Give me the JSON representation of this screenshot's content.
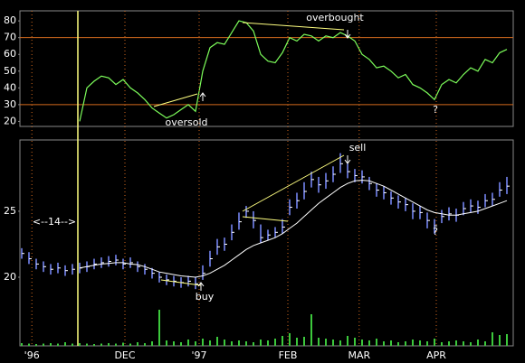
{
  "chart_data": [
    {
      "type": "line",
      "color": "#7CFC5A",
      "values": [
        null,
        null,
        null,
        null,
        null,
        null,
        null,
        null,
        20,
        40,
        44,
        47,
        46,
        42,
        45,
        40,
        37,
        33,
        28,
        25,
        22,
        24,
        27,
        30,
        26,
        50,
        64,
        67,
        66,
        73,
        80,
        79,
        74,
        60,
        56,
        55,
        61,
        70,
        68,
        72,
        71,
        68,
        71,
        70,
        73,
        71,
        68,
        60,
        57,
        52,
        53,
        50,
        46,
        48,
        42,
        40,
        37,
        33,
        42,
        45,
        43,
        48,
        52,
        50,
        57,
        55,
        61,
        63
      ],
      "xlim": [
        -0.25,
        67.875
      ],
      "ylim": [
        17,
        86
      ],
      "yticks": [
        20,
        30,
        40,
        50,
        60,
        70,
        80
      ],
      "levels": [
        70,
        30
      ],
      "level_color": "#D2691E",
      "annotations": [
        "overbought",
        "oversold",
        "?"
      ]
    },
    {
      "type": "ohlc",
      "bar_color": "#7B8CFF",
      "close_color": "#ffffff",
      "ma_color": "#ffffff",
      "volume_color": "#3CC83C",
      "high": [
        22.2,
        21.9,
        21.4,
        21.2,
        21.0,
        21.1,
        20.9,
        21.0,
        21.1,
        21.2,
        21.4,
        21.5,
        21.6,
        21.7,
        21.4,
        21.5,
        21.2,
        21.0,
        20.7,
        20.4,
        20.2,
        20.1,
        20.0,
        20.1,
        20.0,
        20.9,
        22.0,
        22.9,
        23.0,
        24.0,
        24.9,
        25.4,
        25.0,
        24.0,
        23.6,
        23.8,
        24.4,
        25.9,
        26.4,
        27.2,
        28.0,
        27.6,
        27.9,
        28.4,
        29.4,
        28.6,
        28.2,
        28.1,
        27.6,
        27.1,
        26.9,
        26.5,
        26.2,
        26.0,
        25.6,
        25.4,
        24.9,
        24.4,
        25.1,
        25.3,
        25.2,
        25.7,
        25.9,
        25.8,
        26.3,
        26.4,
        27.2,
        27.6
      ],
      "low": [
        21.4,
        21.0,
        20.6,
        20.4,
        20.2,
        20.3,
        20.1,
        20.2,
        20.3,
        20.4,
        20.6,
        20.7,
        20.8,
        20.9,
        20.6,
        20.7,
        20.4,
        20.2,
        19.9,
        19.6,
        19.4,
        19.3,
        19.2,
        19.3,
        19.1,
        19.8,
        20.8,
        21.7,
        22.0,
        22.8,
        23.6,
        24.5,
        23.7,
        22.6,
        22.8,
        23.0,
        23.3,
        24.7,
        25.2,
        25.9,
        26.8,
        26.4,
        26.7,
        27.2,
        27.9,
        27.5,
        27.2,
        27.1,
        26.6,
        26.1,
        25.9,
        25.5,
        25.2,
        25.0,
        24.4,
        24.4,
        23.7,
        23.3,
        24.1,
        24.3,
        24.2,
        24.7,
        24.9,
        24.8,
        25.3,
        25.4,
        26.1,
        26.3
      ],
      "close": [
        21.8,
        21.4,
        21.0,
        20.8,
        20.6,
        20.7,
        20.5,
        20.6,
        20.7,
        20.8,
        21.0,
        21.1,
        21.2,
        21.3,
        21.0,
        21.1,
        20.8,
        20.6,
        20.3,
        20.0,
        19.8,
        19.7,
        19.6,
        19.7,
        19.5,
        20.3,
        21.4,
        22.3,
        22.5,
        23.4,
        24.2,
        25.0,
        24.3,
        23.0,
        23.2,
        23.4,
        23.8,
        25.3,
        25.8,
        26.5,
        27.4,
        27.0,
        27.3,
        27.8,
        28.6,
        28.0,
        27.7,
        27.6,
        27.1,
        26.6,
        26.4,
        26.0,
        25.7,
        25.5,
        25.0,
        24.9,
        24.3,
        23.9,
        24.6,
        24.8,
        24.7,
        25.2,
        25.4,
        25.3,
        25.8,
        25.9,
        26.6,
        26.9
      ],
      "ma": [
        null,
        null,
        null,
        null,
        null,
        null,
        null,
        null,
        20.7,
        20.8,
        20.9,
        21.0,
        21.05,
        21.1,
        21.1,
        21.0,
        20.95,
        20.8,
        20.6,
        20.4,
        20.3,
        20.2,
        20.1,
        20.05,
        20.0,
        20.1,
        20.3,
        20.6,
        20.9,
        21.3,
        21.7,
        22.1,
        22.4,
        22.6,
        22.8,
        23.0,
        23.3,
        23.7,
        24.1,
        24.6,
        25.1,
        25.6,
        26.0,
        26.4,
        26.8,
        27.1,
        27.3,
        27.35,
        27.3,
        27.1,
        26.9,
        26.6,
        26.3,
        26.0,
        25.7,
        25.4,
        25.1,
        24.9,
        24.8,
        24.7,
        24.7,
        24.8,
        24.9,
        25.0,
        25.2,
        25.4,
        25.6,
        25.8
      ],
      "volume": [
        6,
        5,
        4,
        5,
        6,
        5,
        8,
        5,
        6,
        5,
        4,
        5,
        6,
        5,
        7,
        5,
        8,
        6,
        10,
        80,
        12,
        10,
        8,
        14,
        10,
        16,
        12,
        20,
        14,
        10,
        12,
        10,
        8,
        14,
        12,
        16,
        22,
        28,
        18,
        20,
        70,
        18,
        16,
        14,
        12,
        22,
        18,
        14,
        12,
        16,
        10,
        12,
        8,
        10,
        14,
        12,
        10,
        16,
        8,
        10,
        12,
        10,
        8,
        14,
        10,
        30,
        24,
        26
      ],
      "xlim": [
        -0.25,
        67.875
      ],
      "ylim": [
        14.8,
        30.4
      ],
      "yticks": [
        20,
        25
      ],
      "vlim": [
        0,
        100
      ],
      "xticks": [
        {
          "value": 1.4,
          "label": "'96"
        },
        {
          "value": 14.25,
          "label": "DEC"
        },
        {
          "value": 24.5,
          "label": "'97"
        },
        {
          "value": 36.75,
          "label": "FEB"
        },
        {
          "value": 46.6,
          "label": "MAR"
        },
        {
          "value": 57.25,
          "label": "APR"
        }
      ],
      "annotations": [
        "sell",
        "buy",
        "?",
        "<--14-->"
      ]
    }
  ]
}
